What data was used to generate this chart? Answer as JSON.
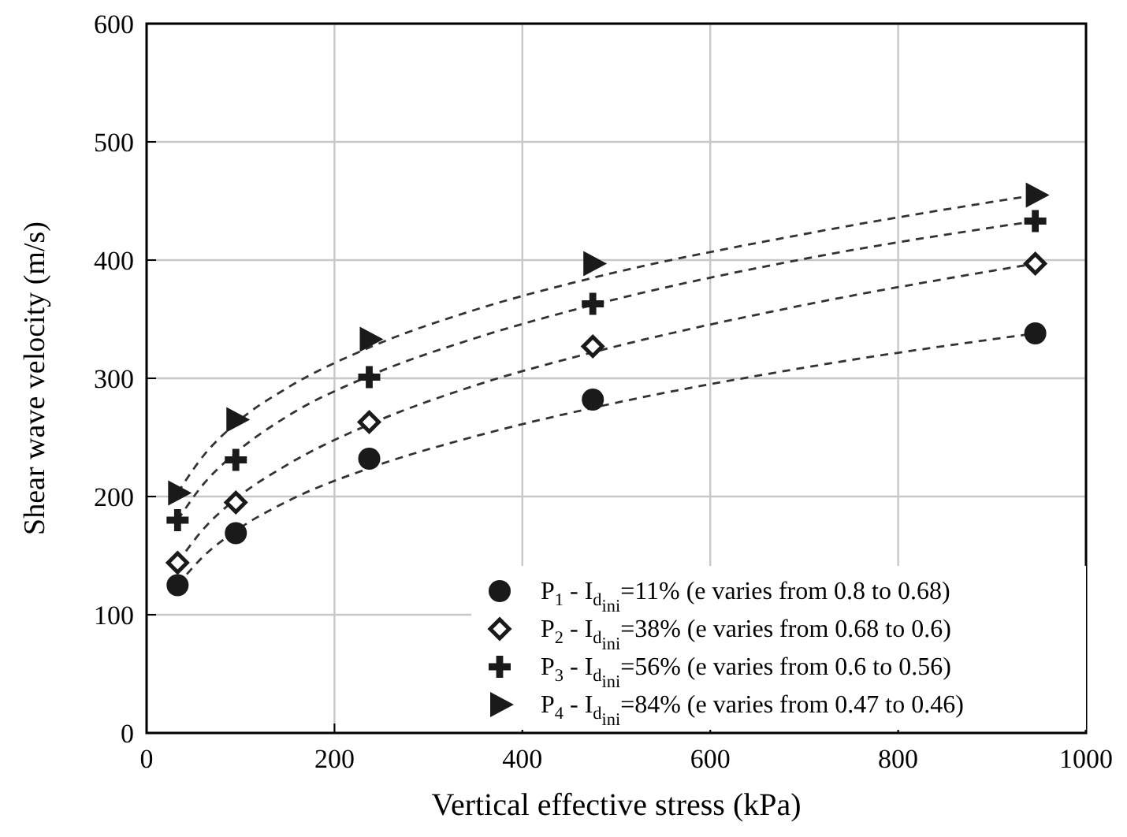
{
  "chart_data": {
    "type": "scatter",
    "xlabel": "Vertical effective stress (kPa)",
    "ylabel": "Shear wave velocity (m/s)",
    "xlim": [
      0,
      1000
    ],
    "xticks": [
      0,
      200,
      400,
      600,
      800,
      1000
    ],
    "ylim": [
      0,
      600
    ],
    "yticks": [
      0,
      100,
      200,
      300,
      400,
      500,
      600
    ],
    "grid": true,
    "legend": "bottom right",
    "series": [
      {
        "name": "P$_{1}$ - I$_{d}$$_{ini}$=11% (e varies from 0.8 to 0.68)",
        "color": "#1a1a1a",
        "marker": "circle",
        "x": [
          33,
          95,
          237,
          475,
          946
        ],
        "values": [
          125,
          169,
          232,
          282,
          338
        ]
      },
      {
        "name": "P$_{2}$ - I$_{d}$$_{ini}$=38% (e varies from 0.68 to 0.6)",
        "color": "#1a1a1a",
        "marker": "diamond",
        "x": [
          33,
          95,
          237,
          475,
          946
        ],
        "values": [
          144,
          195,
          263,
          327,
          397
        ]
      },
      {
        "name": "P$_{3}$ - I$_{d}$$_{ini}$=56% (e varies from 0.6 to 0.56)",
        "color": "#1a1a1a",
        "marker": "cross",
        "x": [
          33,
          95,
          237,
          475,
          946
        ],
        "values": [
          180,
          231,
          301,
          363,
          433
        ]
      },
      {
        "name": "P$_{4}$ - I$_{d}$$_{ini}$=84% (e varies from 0.47 to 0.46)",
        "color": "#1a1a1a",
        "marker": "triangle",
        "x": [
          33,
          95,
          237,
          475,
          946
        ],
        "values": [
          203,
          265,
          333,
          397,
          455
        ]
      },
      {
        "type": "line",
        "color": "#333333",
        "line_style": "dashed",
        "marker": "none",
        "x": [
          33,
          60,
          95,
          150,
          237,
          350,
          475,
          700,
          946
        ],
        "values": [
          125,
          149,
          171,
          196,
          224,
          251,
          275,
          309,
          338
        ]
      },
      {
        "type": "line",
        "color": "#333333",
        "line_style": "dashed",
        "marker": "none",
        "x": [
          33,
          60,
          95,
          150,
          237,
          350,
          475,
          700,
          946
        ],
        "values": [
          144,
          172,
          198,
          227,
          261,
          294,
          322,
          362,
          397
        ]
      },
      {
        "type": "line",
        "color": "#333333",
        "line_style": "dashed",
        "marker": "none",
        "x": [
          33,
          60,
          95,
          150,
          237,
          350,
          475,
          700,
          946
        ],
        "values": [
          180,
          210,
          237,
          268,
          302,
          334,
          362,
          401,
          433
        ]
      },
      {
        "type": "line",
        "color": "#333333",
        "line_style": "dashed",
        "marker": "none",
        "x": [
          33,
          60,
          95,
          150,
          237,
          350,
          475,
          700,
          946
        ],
        "values": [
          203,
          234,
          262,
          292,
          326,
          358,
          385,
          422,
          455
        ]
      }
    ]
  }
}
